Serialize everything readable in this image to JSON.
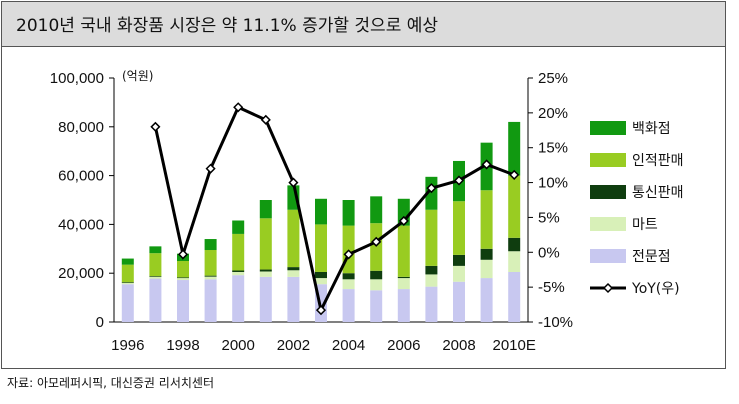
{
  "title": "2010년 국내 화장품 시장은 약 11.1% 증가할 것으로 예상",
  "source": "자료: 아모레퍼시픽, 대신증권 리서치센터",
  "chart_data": {
    "type": "bar",
    "stacked": true,
    "unit_label": "(억원)",
    "x": [
      "1996",
      "1997",
      "1998",
      "1999",
      "2000",
      "2001",
      "2002",
      "2003",
      "2004",
      "2005",
      "2006",
      "2007",
      "2008",
      "2009",
      "2010E"
    ],
    "x_tick_labels": [
      "1996",
      "1998",
      "2000",
      "2002",
      "2004",
      "2006",
      "2008",
      "2010E"
    ],
    "ylim_left": [
      0,
      100000
    ],
    "y_ticks_left": [
      "0",
      "20,000",
      "40,000",
      "60,000",
      "80,000",
      "100,000"
    ],
    "ylim_right": [
      -10,
      25
    ],
    "y_ticks_right": [
      "-10%",
      "-5%",
      "0%",
      "5%",
      "10%",
      "15%",
      "20%",
      "25%"
    ],
    "series": [
      {
        "name": "전문점",
        "color": "#c8c8f0",
        "values": [
          15500,
          17800,
          17200,
          17500,
          19200,
          18500,
          18500,
          15500,
          13500,
          13000,
          13500,
          14500,
          16500,
          18000,
          20500
        ]
      },
      {
        "name": "마트",
        "color": "#d8f0b8",
        "values": [
          500,
          700,
          800,
          1100,
          1300,
          2200,
          2700,
          2500,
          4000,
          4500,
          4500,
          5000,
          6500,
          7500,
          8500
        ]
      },
      {
        "name": "통신판매",
        "color": "#0f3d0f",
        "values": [
          300,
          300,
          300,
          400,
          600,
          800,
          1300,
          2500,
          2500,
          3500,
          500,
          3500,
          4500,
          4500,
          5500
        ]
      },
      {
        "name": "인적판매",
        "color": "#99cc22",
        "values": [
          7200,
          9400,
          6700,
          10500,
          15000,
          21000,
          23500,
          19500,
          19500,
          19500,
          21000,
          23000,
          22000,
          24000,
          25500
        ]
      },
      {
        "name": "백화점",
        "color": "#119911",
        "values": [
          2500,
          2800,
          3000,
          4500,
          5500,
          7500,
          10000,
          10500,
          10500,
          11000,
          11000,
          13500,
          16500,
          19500,
          22000
        ]
      }
    ],
    "line": {
      "name": "YoY(우)",
      "color": "#000000",
      "x": [
        "1997",
        "1998",
        "1999",
        "2000",
        "2001",
        "2002",
        "2003",
        "2004",
        "2005",
        "2006",
        "2007",
        "2008",
        "2009",
        "2010E"
      ],
      "values": [
        18,
        -0.3,
        12,
        20.8,
        19,
        10,
        -8.3,
        -0.3,
        1.5,
        4.5,
        9.2,
        10.3,
        12.6,
        11.1
      ]
    },
    "legend": [
      "백화점",
      "인적판매",
      "통신판매",
      "마트",
      "전문점",
      "YoY(우)"
    ],
    "legend_position": "right",
    "grid": false
  }
}
